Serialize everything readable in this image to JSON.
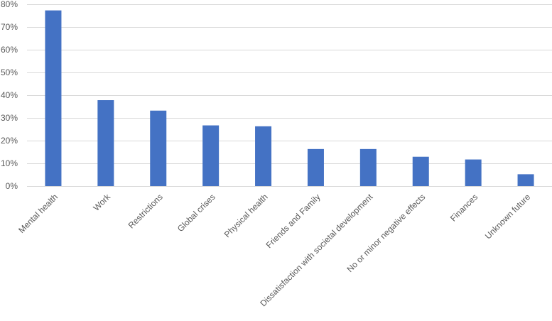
{
  "chart_data": {
    "type": "bar",
    "categories": [
      "Mental health",
      "Work",
      "Restrictions",
      "Global crises",
      "Physical health",
      "Friends and Family",
      "Dissatisfaction with societal development",
      "No or minor negative effects",
      "Finances",
      "Unknown future"
    ],
    "values": [
      77.3,
      37.8,
      33.2,
      26.7,
      26.3,
      16.3,
      16.3,
      12.9,
      11.7,
      5.2
    ],
    "ylim": [
      0,
      80
    ],
    "yticks": [
      0,
      10,
      20,
      30,
      40,
      50,
      60,
      70,
      80
    ],
    "ytick_labels": [
      "0%",
      "10%",
      "20%",
      "30%",
      "40%",
      "50%",
      "60%",
      "70%",
      "80%"
    ],
    "grid": true,
    "bar_color": "#4472C4",
    "title": "",
    "xlabel": "",
    "ylabel": ""
  }
}
